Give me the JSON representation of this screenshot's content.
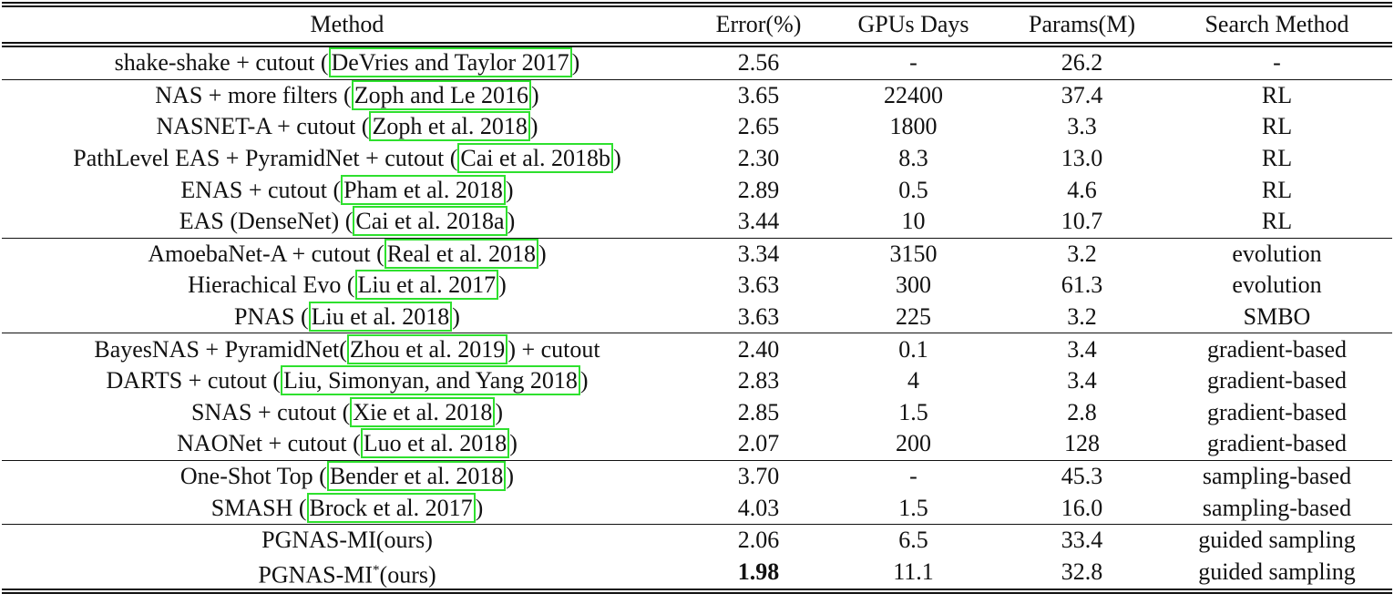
{
  "table": {
    "header": [
      "Method",
      "Error(%)",
      "GPUs Days",
      "Params(M)",
      "Search Method"
    ],
    "groups": [
      [
        {
          "method": [
            {
              "text": "shake-shake + cutout ("
            },
            {
              "cite": "DeVries and Taylor 2017"
            },
            {
              "text": ")"
            }
          ],
          "cells": [
            "2.56",
            "-",
            "26.2",
            "-"
          ]
        }
      ],
      [
        {
          "method": [
            {
              "text": "NAS + more filters ("
            },
            {
              "cite": "Zoph and Le 2016"
            },
            {
              "text": ")"
            }
          ],
          "cells": [
            "3.65",
            "22400",
            "37.4",
            "RL"
          ]
        },
        {
          "method": [
            {
              "text": "NASNET-A + cutout ("
            },
            {
              "cite": "Zoph et al. 2018"
            },
            {
              "text": ")"
            }
          ],
          "cells": [
            "2.65",
            "1800",
            "3.3",
            "RL"
          ]
        },
        {
          "method": [
            {
              "text": "PathLevel EAS + PyramidNet + cutout ("
            },
            {
              "cite": "Cai et al. 2018b"
            },
            {
              "text": ")"
            }
          ],
          "cells": [
            "2.30",
            "8.3",
            "13.0",
            "RL"
          ]
        },
        {
          "method": [
            {
              "text": "ENAS + cutout ("
            },
            {
              "cite": "Pham et al. 2018"
            },
            {
              "text": ")"
            }
          ],
          "cells": [
            "2.89",
            "0.5",
            "4.6",
            "RL"
          ]
        },
        {
          "method": [
            {
              "text": "EAS (DenseNet) ("
            },
            {
              "cite": "Cai et al. 2018a"
            },
            {
              "text": ")"
            }
          ],
          "cells": [
            "3.44",
            "10",
            "10.7",
            "RL"
          ]
        }
      ],
      [
        {
          "method": [
            {
              "text": "AmoebaNet-A + cutout ("
            },
            {
              "cite": "Real et al. 2018"
            },
            {
              "text": ")"
            }
          ],
          "cells": [
            "3.34",
            "3150",
            "3.2",
            "evolution"
          ]
        },
        {
          "method": [
            {
              "text": "Hierachical Evo ("
            },
            {
              "cite": "Liu et al. 2017"
            },
            {
              "text": ")"
            }
          ],
          "cells": [
            "3.63",
            "300",
            "61.3",
            "evolution"
          ]
        },
        {
          "method": [
            {
              "text": "PNAS ("
            },
            {
              "cite": "Liu et al. 2018"
            },
            {
              "text": ")"
            }
          ],
          "cells": [
            "3.63",
            "225",
            "3.2",
            "SMBO"
          ]
        }
      ],
      [
        {
          "method": [
            {
              "text": "BayesNAS + PyramidNet("
            },
            {
              "cite": "Zhou et al. 2019"
            },
            {
              "text": ") + cutout"
            }
          ],
          "cells": [
            "2.40",
            "0.1",
            "3.4",
            "gradient-based"
          ]
        },
        {
          "method": [
            {
              "text": "DARTS + cutout ("
            },
            {
              "cite": "Liu, Simonyan, and Yang 2018"
            },
            {
              "text": ")"
            }
          ],
          "cells": [
            "2.83",
            "4",
            "3.4",
            "gradient-based"
          ]
        },
        {
          "method": [
            {
              "text": "SNAS + cutout ("
            },
            {
              "cite": "Xie et al. 2018"
            },
            {
              "text": ")"
            }
          ],
          "cells": [
            "2.85",
            "1.5",
            "2.8",
            "gradient-based"
          ]
        },
        {
          "method": [
            {
              "text": "NAONet + cutout ("
            },
            {
              "cite": "Luo et al. 2018"
            },
            {
              "text": ")"
            }
          ],
          "cells": [
            "2.07",
            "200",
            "128",
            "gradient-based"
          ]
        }
      ],
      [
        {
          "method": [
            {
              "text": "One-Shot Top ("
            },
            {
              "cite": "Bender et al. 2018"
            },
            {
              "text": ")"
            }
          ],
          "cells": [
            "3.70",
            "-",
            "45.3",
            "sampling-based"
          ]
        },
        {
          "method": [
            {
              "text": "SMASH ("
            },
            {
              "cite": "Brock et al. 2017"
            },
            {
              "text": ")"
            }
          ],
          "cells": [
            "4.03",
            "1.5",
            "16.0",
            "sampling-based"
          ]
        }
      ],
      [
        {
          "method": [
            {
              "text": "PGNAS-MI(ours)"
            }
          ],
          "cells": [
            "2.06",
            "6.5",
            "33.4",
            "guided sampling"
          ]
        },
        {
          "method": [
            {
              "text": "PGNAS-MI"
            },
            {
              "sup": "*"
            },
            {
              "text": "(ours)"
            }
          ],
          "cells": [
            "1.98",
            "11.1",
            "32.8",
            "guided sampling"
          ],
          "bold_cell": 0
        }
      ]
    ]
  }
}
